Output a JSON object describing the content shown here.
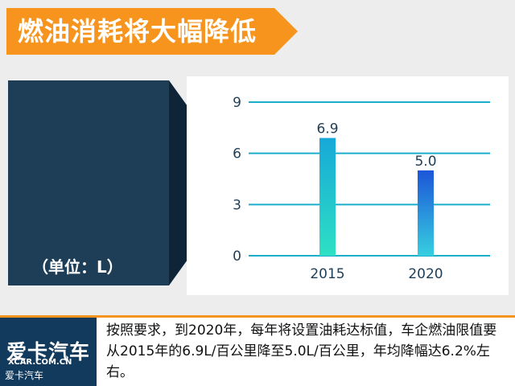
{
  "title": "燃油消耗将大幅降低",
  "unit_label": "（单位：L）",
  "caption": "按照要求，到2020年，每年将设置油耗达标值，车企燃油限值要从2015年的6.9L/百公里降至5.0L/百公里，年均降幅达6.2%左右。",
  "logo": {
    "brand": "爱卡汽车",
    "english": "XCAR.COM.CN",
    "small": "爱卡汽车"
  },
  "colors": {
    "accent": "#f7941d",
    "panel": "#1e3e58",
    "gridline": "#1aaecb"
  },
  "chart_data": {
    "type": "bar",
    "categories": [
      "2015",
      "2020"
    ],
    "values": [
      6.9,
      5.0
    ],
    "value_labels": [
      "6.9",
      "5.0"
    ],
    "yticks": [
      "0",
      "3",
      "6",
      "9"
    ],
    "ylim": [
      0,
      9
    ],
    "grid": true,
    "title": "",
    "xlabel": "",
    "ylabel": ""
  }
}
